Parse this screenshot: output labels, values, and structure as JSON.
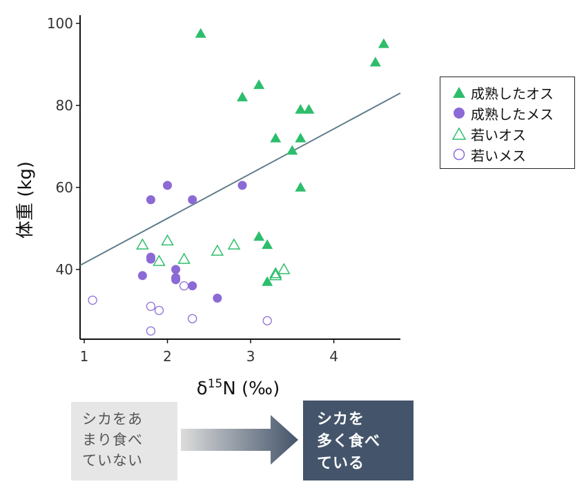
{
  "chart_data": {
    "type": "scatter",
    "title": "",
    "xlabel_parts": {
      "delta": "δ",
      "superscript": "15",
      "rest": "N (‰)"
    },
    "ylabel": "体重 (kg)",
    "xlim": [
      0.95,
      4.8
    ],
    "ylim": [
      23,
      102
    ],
    "x_ticks": [
      "1",
      "2",
      "3",
      "4"
    ],
    "x_tick_values": [
      1,
      2,
      3,
      4
    ],
    "y_ticks": [
      "40",
      "60",
      "80",
      "100"
    ],
    "y_tick_values": [
      40,
      60,
      80,
      100
    ],
    "grid": false,
    "legend_placement": "right",
    "trendline": {
      "x": [
        0.95,
        4.8
      ],
      "y": [
        41.0,
        83.0
      ],
      "color": "#607d8b"
    },
    "series": [
      {
        "name": "成熟したオス",
        "marker": "triangle",
        "filled": true,
        "color": "#2dbe6c",
        "x": [
          2.4,
          4.6,
          4.5,
          2.9,
          3.1,
          3.6,
          3.7,
          3.3,
          3.6,
          3.5,
          3.6,
          3.1,
          3.2,
          3.2
        ],
        "y": [
          97.5,
          95,
          90.5,
          82,
          85,
          79,
          79,
          72,
          72,
          69,
          60,
          48,
          46,
          37
        ]
      },
      {
        "name": "成熟したメス",
        "marker": "circle",
        "filled": true,
        "color": "#8b6ad6",
        "x": [
          2.0,
          2.9,
          1.8,
          2.3,
          1.8,
          1.8,
          1.7,
          2.1,
          2.1,
          2.1,
          2.3,
          2.6
        ],
        "y": [
          60.5,
          60.5,
          57,
          57,
          43,
          42.5,
          38.5,
          40,
          38,
          37.5,
          36,
          33
        ]
      },
      {
        "name": "若いオス",
        "marker": "triangle",
        "filled": false,
        "color": "#2dbe6c",
        "x": [
          1.7,
          2.0,
          1.9,
          2.2,
          2.6,
          2.8,
          3.4,
          3.3,
          3.3
        ],
        "y": [
          46,
          47,
          42,
          42.5,
          44.5,
          46,
          40,
          39,
          38.5
        ]
      },
      {
        "name": "若いメス",
        "marker": "circle",
        "filled": false,
        "color": "#8b6ad6",
        "x": [
          1.1,
          1.8,
          1.9,
          2.2,
          2.3,
          3.2,
          1.8
        ],
        "y": [
          32.5,
          31,
          30,
          36,
          28,
          27.5,
          25
        ]
      }
    ]
  },
  "bottom": {
    "left_box_lines": [
      "シカをあ",
      "まり食べ",
      "ていない"
    ],
    "right_box_lines": [
      "シカを",
      "多く食べ",
      "ている"
    ],
    "left_box_color": "#e6e6e6",
    "right_box_color": "#44546a",
    "arrow_gradient": [
      "#d9d9d9",
      "#44546a"
    ]
  }
}
